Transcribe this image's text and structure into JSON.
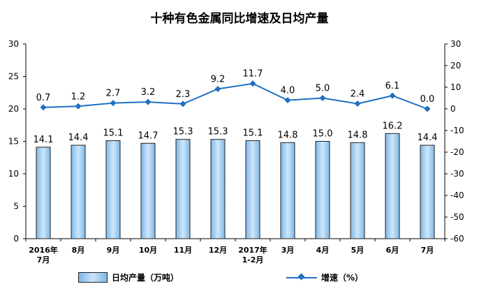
{
  "chart_data": {
    "type": "bar",
    "title": "十种有色金属同比增速及日均产量",
    "categories": [
      [
        "2016年",
        "7月"
      ],
      [
        "8月"
      ],
      [
        "9月"
      ],
      [
        "10月"
      ],
      [
        "11月"
      ],
      [
        "12月"
      ],
      [
        "2017年",
        "1-2月"
      ],
      [
        "3月"
      ],
      [
        "4月"
      ],
      [
        "5月"
      ],
      [
        "6月"
      ],
      [
        "7月"
      ]
    ],
    "series": [
      {
        "name": "日均产量（万吨）",
        "type": "bar",
        "axis": "left",
        "values": [
          14.1,
          14.4,
          15.1,
          14.7,
          15.3,
          15.3,
          15.1,
          14.8,
          15.0,
          14.8,
          16.2,
          14.4
        ],
        "labels": [
          "14.1",
          "14.4",
          "15.1",
          "14.7",
          "15.3",
          "15.3",
          "15.1",
          "14.8",
          "15.0",
          "14.8",
          "16.2",
          "14.4"
        ]
      },
      {
        "name": "增速（%）",
        "type": "line",
        "axis": "right",
        "values": [
          0.7,
          1.2,
          2.7,
          3.2,
          2.3,
          9.2,
          11.7,
          4.0,
          5.0,
          2.4,
          6.1,
          0.0
        ],
        "labels": [
          "0.7",
          "1.2",
          "2.7",
          "3.2",
          "2.3",
          "9.2",
          "11.7",
          "4.0",
          "5.0",
          "2.4",
          "6.1",
          "0.0"
        ]
      }
    ],
    "y_left": {
      "min": 0,
      "max": 30,
      "ticks": [
        "0",
        "5",
        "10",
        "15",
        "20",
        "25",
        "30"
      ]
    },
    "y_right": {
      "min": -60,
      "max": 30,
      "ticks": [
        "-60",
        "-50",
        "-40",
        "-30",
        "-20",
        "-10",
        "0",
        "10",
        "20",
        "30"
      ]
    },
    "grid": false,
    "legend_position": "bottom",
    "colors": {
      "bar_fill": "#a8d2f2",
      "bar_stroke": "#222222",
      "line": "#1f6fc1"
    }
  }
}
